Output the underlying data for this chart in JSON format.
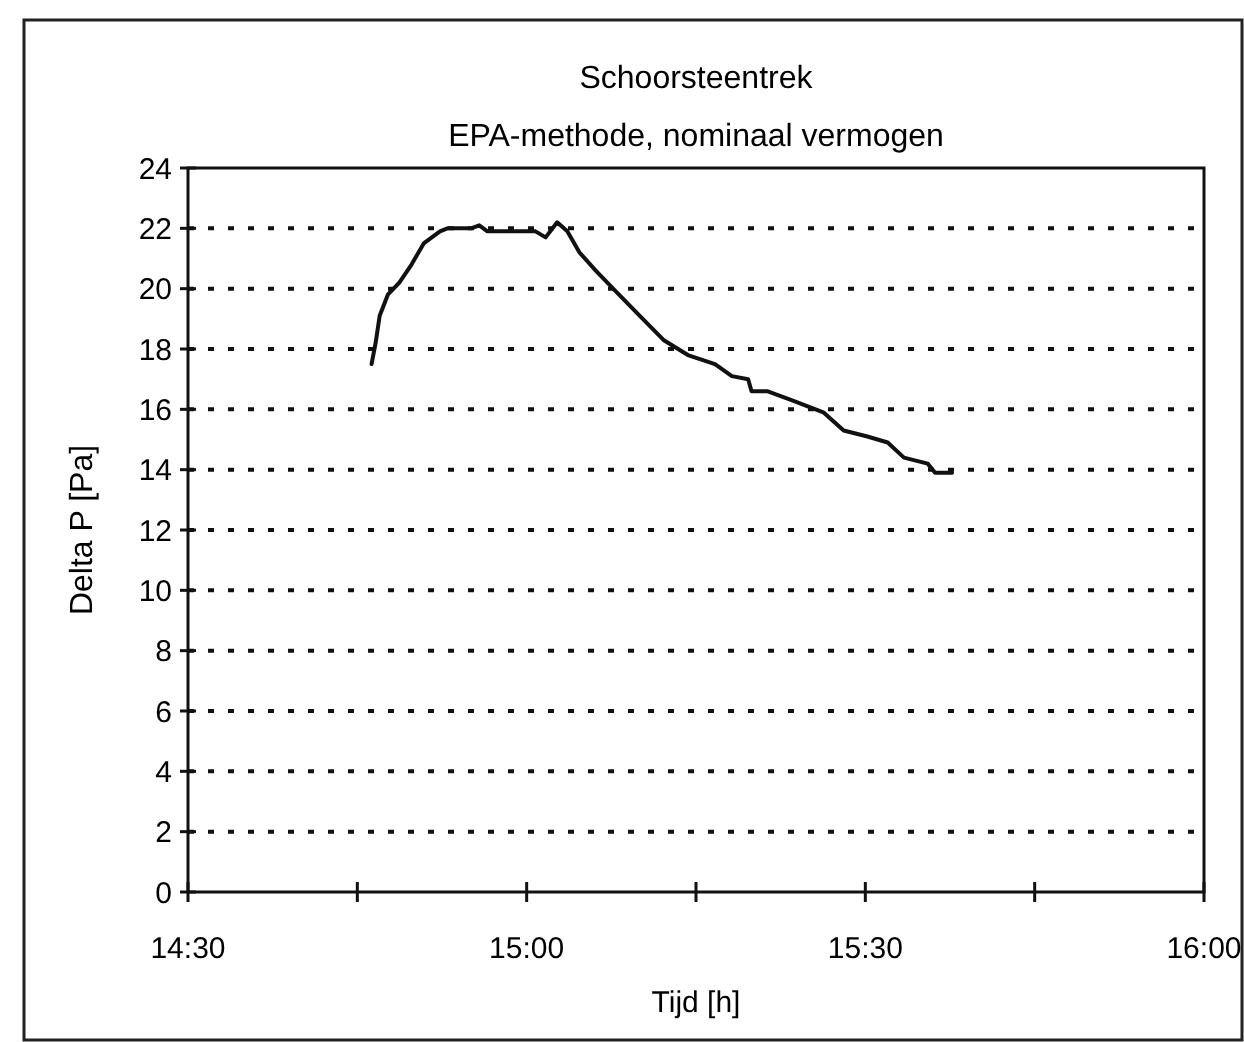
{
  "chart_data": {
    "type": "line",
    "title": "Schoorsteentrek",
    "subtitle": "EPA-methode, nominaal vermogen",
    "xlabel": "Tijd [h]",
    "ylabel": "Delta P [Pa]",
    "xlim": [
      14.5,
      16
    ],
    "xticks": [
      {
        "value": 14.5,
        "label": "14:30"
      },
      {
        "value": 14.75,
        "label": null
      },
      {
        "value": 15,
        "label": "15:00"
      },
      {
        "value": 15.25,
        "label": null
      },
      {
        "value": 15.5,
        "label": "15:30"
      },
      {
        "value": 15.75,
        "label": null
      },
      {
        "value": 16,
        "label": "16:00"
      }
    ],
    "ylim": [
      0,
      24
    ],
    "yticks": [
      0,
      2,
      4,
      6,
      8,
      10,
      12,
      14,
      16,
      18,
      20,
      22,
      24
    ],
    "grid": "y",
    "marker": "none",
    "line_style": "solid",
    "series": [
      {
        "color": "#111111",
        "x": [
          14.771,
          14.777,
          14.783,
          14.795,
          14.812,
          14.83,
          14.848,
          14.872,
          14.883,
          14.918,
          14.93,
          14.942,
          15.013,
          15.028,
          15.045,
          15.06,
          15.078,
          15.102,
          15.132,
          15.167,
          15.202,
          15.238,
          15.278,
          15.303,
          15.327,
          15.332,
          15.355,
          15.392,
          15.438,
          15.468,
          15.503,
          15.533,
          15.557,
          15.592,
          15.603,
          15.628
        ],
        "values": [
          17.5,
          18.2,
          19.1,
          19.8,
          20.2,
          20.8,
          21.5,
          21.9,
          22,
          22,
          22.1,
          21.9,
          21.9,
          21.7,
          22.2,
          21.9,
          21.2,
          20.6,
          19.9,
          19.1,
          18.3,
          17.8,
          17.5,
          17.1,
          17,
          16.6,
          16.6,
          16.3,
          15.9,
          15.3,
          15.1,
          14.9,
          14.4,
          14.2,
          13.9,
          13.9
        ]
      }
    ]
  }
}
